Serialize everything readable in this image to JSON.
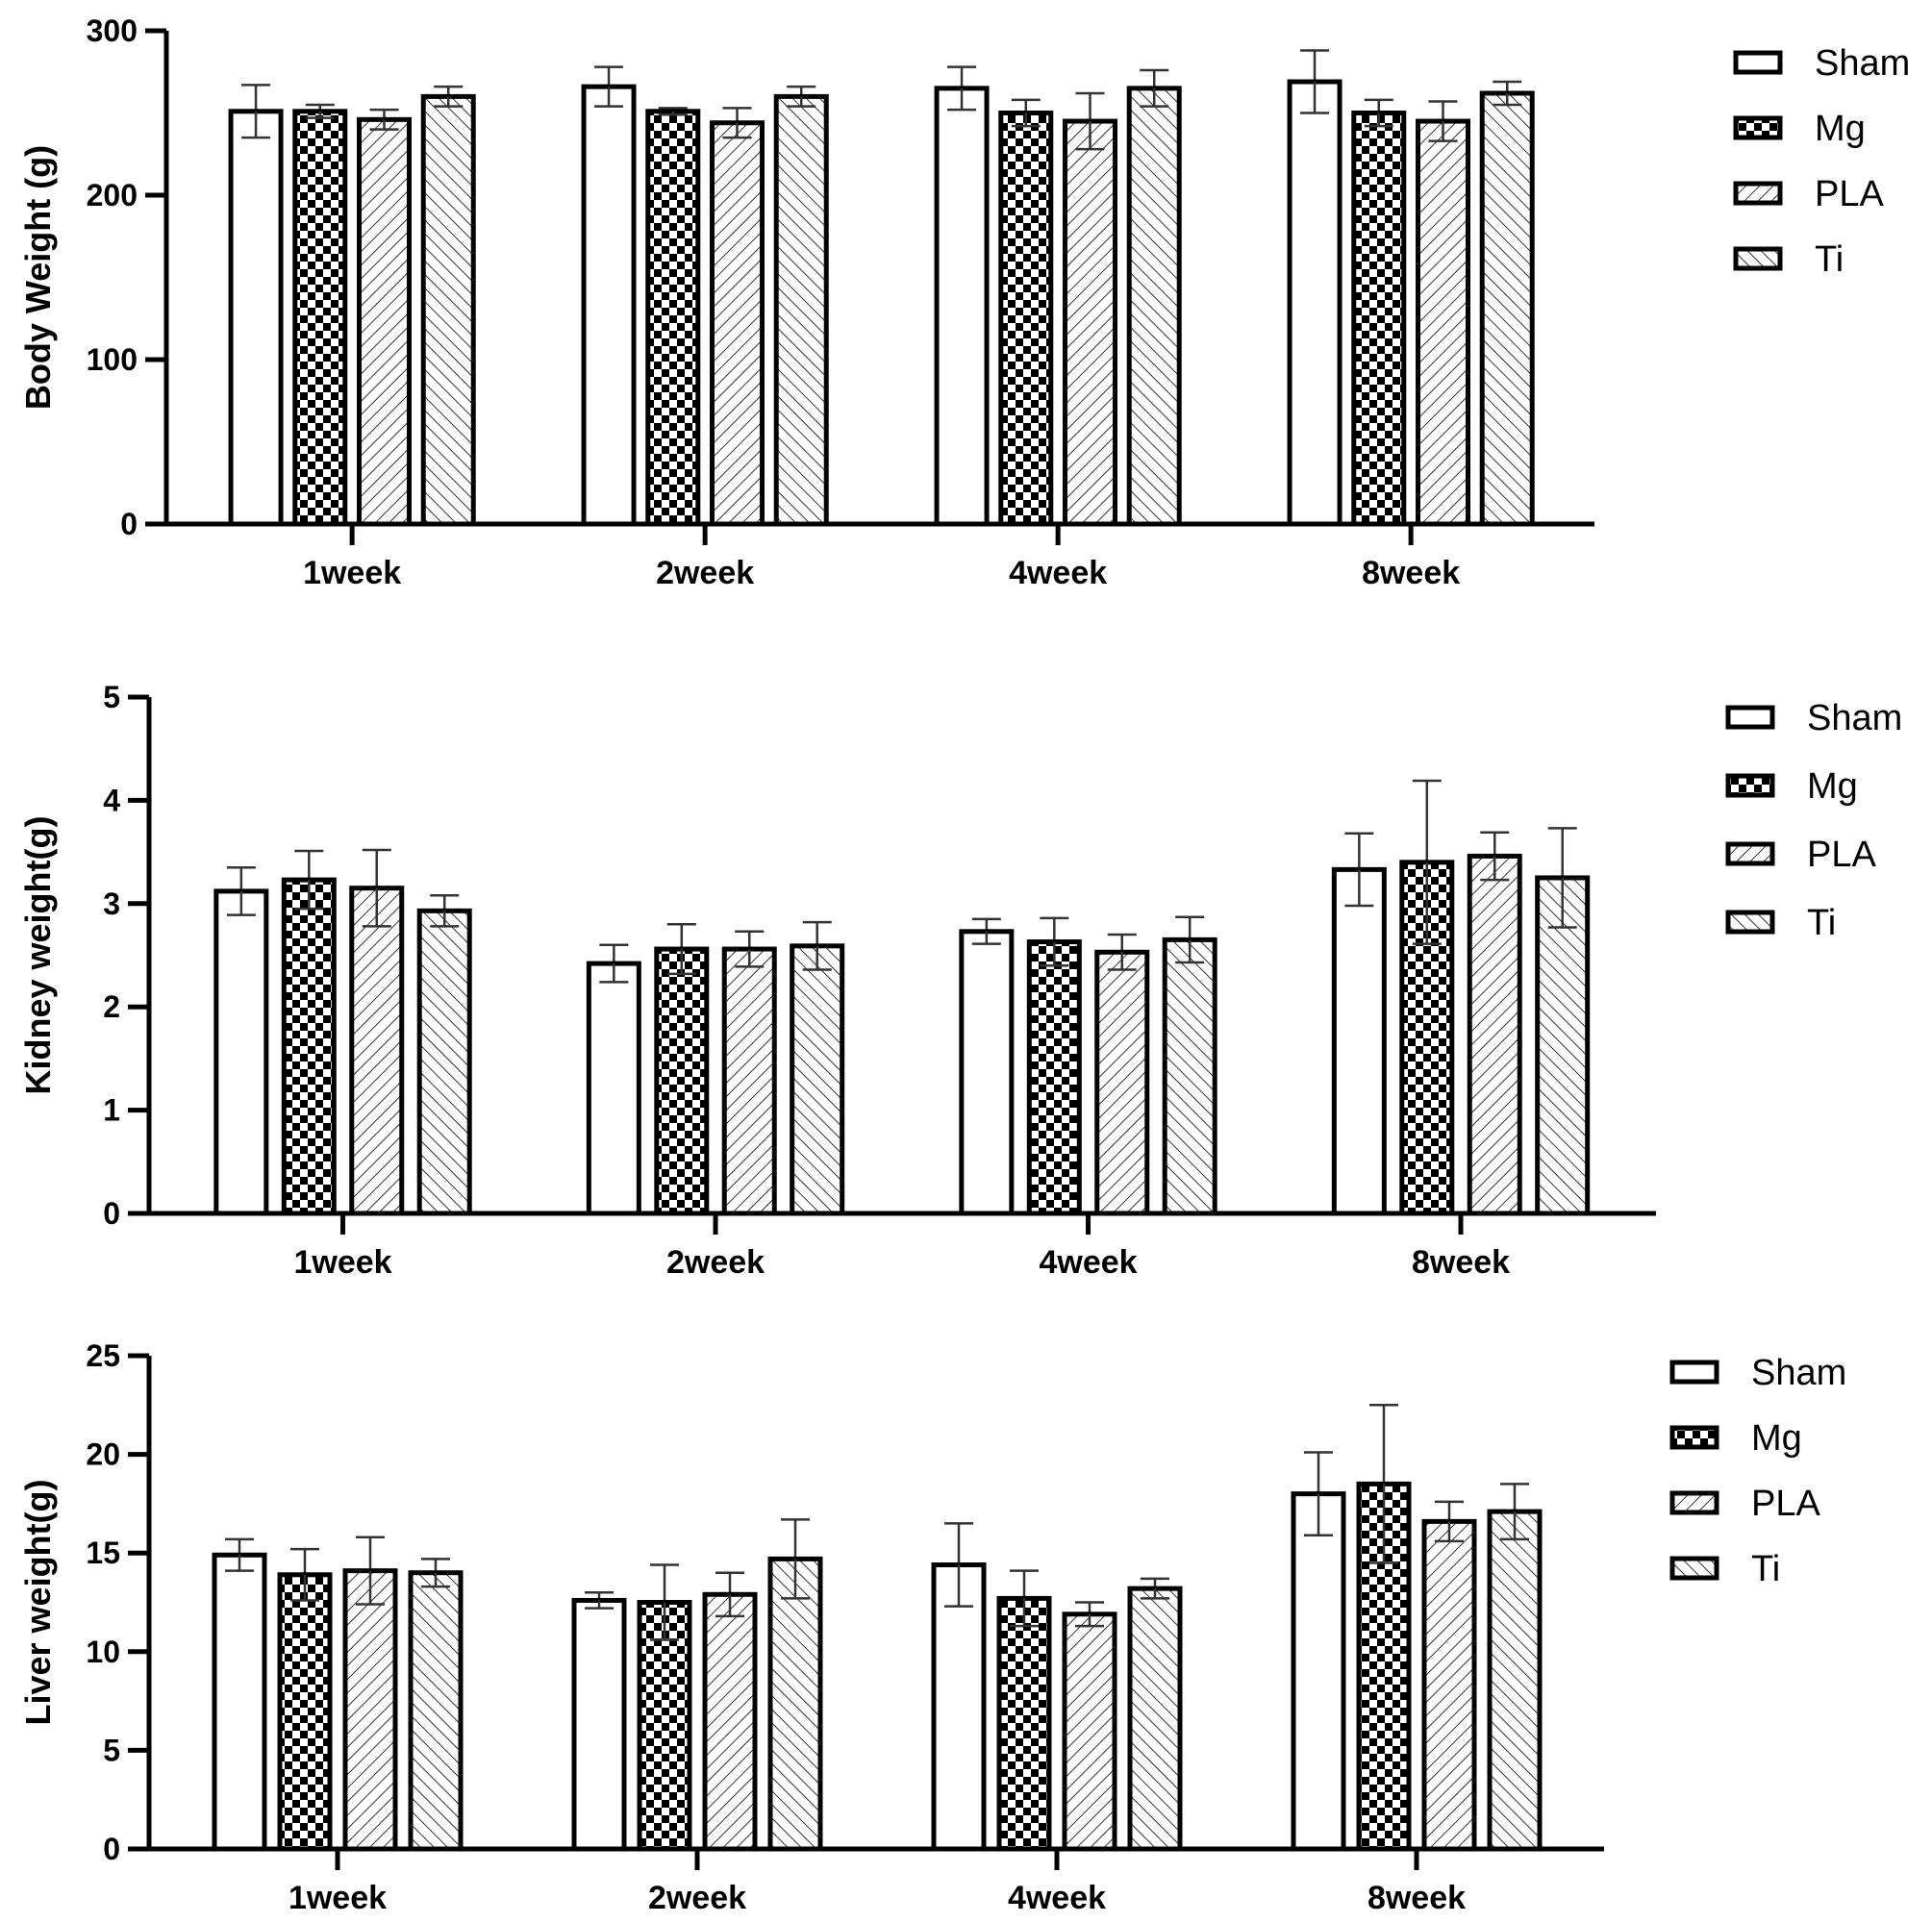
{
  "chart_data": [
    {
      "type": "bar",
      "ylabel": "Body Weight (g)",
      "categories": [
        "1week",
        "2week",
        "4week",
        "8week"
      ],
      "ylim": [
        0,
        300
      ],
      "yticks": [
        0,
        100,
        200,
        300
      ],
      "legend_position": "right",
      "series": [
        {
          "name": "Sham",
          "values": [
            251,
            266,
            265,
            269
          ],
          "errors": [
            16,
            12,
            13,
            19
          ]
        },
        {
          "name": "Mg",
          "values": [
            251,
            251,
            250,
            250
          ],
          "errors": [
            4,
            2,
            8,
            8
          ]
        },
        {
          "name": "PLA",
          "values": [
            246,
            244,
            245,
            245
          ],
          "errors": [
            6,
            9,
            17,
            12
          ]
        },
        {
          "name": "Ti",
          "values": [
            260,
            260,
            265,
            262
          ],
          "errors": [
            6,
            6,
            11,
            7
          ]
        }
      ]
    },
    {
      "type": "bar",
      "ylabel": "Kidney weight(g)",
      "categories": [
        "1week",
        "2week",
        "4week",
        "8week"
      ],
      "ylim": [
        0,
        5
      ],
      "yticks": [
        0,
        1,
        2,
        3,
        4,
        5
      ],
      "legend_position": "right",
      "series": [
        {
          "name": "Sham",
          "values": [
            3.12,
            2.42,
            2.73,
            3.33
          ],
          "errors": [
            0.23,
            0.18,
            0.12,
            0.35
          ]
        },
        {
          "name": "Mg",
          "values": [
            3.23,
            2.56,
            2.63,
            3.4
          ],
          "errors": [
            0.28,
            0.24,
            0.23,
            0.79
          ]
        },
        {
          "name": "PLA",
          "values": [
            3.15,
            2.56,
            2.53,
            3.46
          ],
          "errors": [
            0.37,
            0.17,
            0.17,
            0.23
          ]
        },
        {
          "name": "Ti",
          "values": [
            2.93,
            2.59,
            2.65,
            3.25
          ],
          "errors": [
            0.15,
            0.23,
            0.22,
            0.48
          ]
        }
      ]
    },
    {
      "type": "bar",
      "ylabel": "Liver weight(g)",
      "categories": [
        "1week",
        "2week",
        "4week",
        "8week"
      ],
      "ylim": [
        0,
        25
      ],
      "yticks": [
        0,
        5,
        10,
        15,
        20,
        25
      ],
      "legend_position": "right",
      "series": [
        {
          "name": "Sham",
          "values": [
            14.9,
            12.6,
            14.4,
            18.0
          ],
          "errors": [
            0.8,
            0.4,
            2.1,
            2.1
          ]
        },
        {
          "name": "Mg",
          "values": [
            13.9,
            12.5,
            12.7,
            18.5
          ],
          "errors": [
            1.3,
            1.9,
            1.4,
            4.0
          ]
        },
        {
          "name": "PLA",
          "values": [
            14.1,
            12.9,
            11.9,
            16.6
          ],
          "errors": [
            1.7,
            1.1,
            0.6,
            1.0
          ]
        },
        {
          "name": "Ti",
          "values": [
            14.0,
            14.7,
            13.2,
            17.1
          ],
          "errors": [
            0.7,
            2.0,
            0.5,
            1.4
          ]
        }
      ]
    }
  ]
}
